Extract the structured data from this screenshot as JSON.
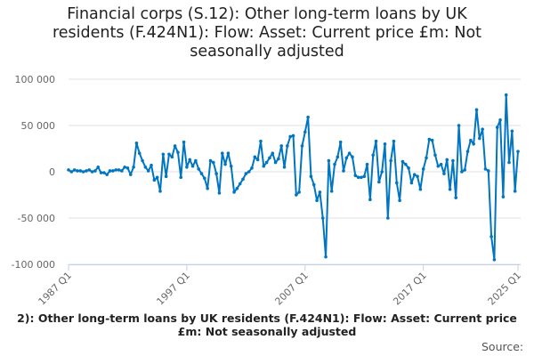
{
  "chart_data": {
    "type": "line",
    "title": "Financial corps (S.12): Other long-term loans by UK residents (F.424N1): Flow: Asset: Current price £m: Not seasonally adjusted",
    "xlabel": "",
    "ylabel": "",
    "x_start": "1987 Q1",
    "x_end": "2025 Q1",
    "frequency": "quarterly",
    "x_ticks": [
      "1987 Q1",
      "1997 Q1",
      "2007 Q1",
      "2017 Q1",
      "2025 Q1"
    ],
    "y_ticks": [
      "100 000",
      "50 000",
      "0",
      "-50 000",
      "-100 000"
    ],
    "ylim": [
      -100000,
      100000
    ],
    "grid": true,
    "color": "#0075c2",
    "series": [
      {
        "name": "Other long-term loans by UK residents",
        "values_thousands": [
          2,
          0,
          2,
          1,
          1,
          0,
          1,
          2,
          0,
          1,
          5,
          -1,
          -1,
          -3,
          1,
          1,
          2,
          2,
          1,
          5,
          4,
          -3,
          5,
          31,
          20,
          12,
          5,
          1,
          7,
          -9,
          -6,
          -21,
          19,
          -5,
          19,
          16,
          28,
          21,
          -6,
          32,
          5,
          13,
          6,
          12,
          3,
          -2,
          -7,
          -18,
          12,
          10,
          -2,
          -23,
          20,
          8,
          20,
          6,
          -22,
          -18,
          -13,
          -8,
          -2,
          0,
          4,
          16,
          13,
          33,
          6,
          10,
          15,
          20,
          10,
          14,
          28,
          5,
          28,
          38,
          39,
          -25,
          -22,
          28,
          43,
          59,
          -5,
          -14,
          -31,
          -22,
          -50,
          -92,
          12,
          -21,
          8,
          16,
          32,
          1,
          15,
          20,
          16,
          -4,
          -6,
          -6,
          -5,
          8,
          -30,
          18,
          33,
          -11,
          0,
          30,
          -50,
          12,
          33,
          -12,
          -31,
          11,
          8,
          4,
          -12,
          -3,
          -5,
          -19,
          3,
          15,
          35,
          34,
          18,
          6,
          8,
          -2,
          13,
          -19,
          12,
          -28,
          50,
          0,
          2,
          22,
          34,
          30,
          67,
          36,
          46,
          3,
          1,
          -70,
          -95,
          48,
          56,
          -27,
          83,
          10,
          44,
          -21,
          22
        ]
      }
    ]
  },
  "footer": {
    "caption": "2): Other long-term loans by UK residents (F.424N1): Flow: Asset: Current price £m: Not seasonally adjusted",
    "source": "Source:"
  }
}
